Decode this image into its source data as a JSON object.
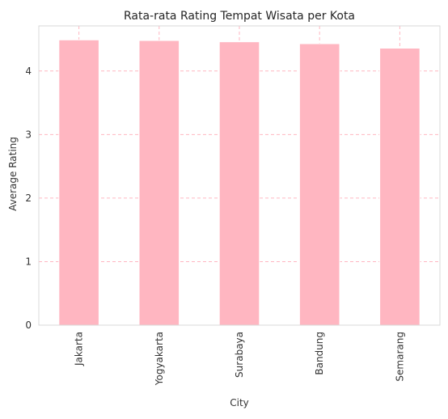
{
  "chart_data": {
    "type": "bar",
    "title": "Rata-rata Rating Tempat Wisata per Kota",
    "xlabel": "City",
    "ylabel": "Average Rating",
    "categories": [
      "Jakarta",
      "Yogyakarta",
      "Surabaya",
      "Bandung",
      "Semarang"
    ],
    "values": [
      4.49,
      4.48,
      4.46,
      4.43,
      4.36
    ],
    "ylim": [
      0,
      4.71
    ],
    "yticks": [
      "0",
      "1",
      "2",
      "3",
      "4"
    ],
    "grid": true,
    "bar_color": "#ffb6c1",
    "grid_color": "#ffb6c1",
    "x_tick_rotation": 90
  }
}
